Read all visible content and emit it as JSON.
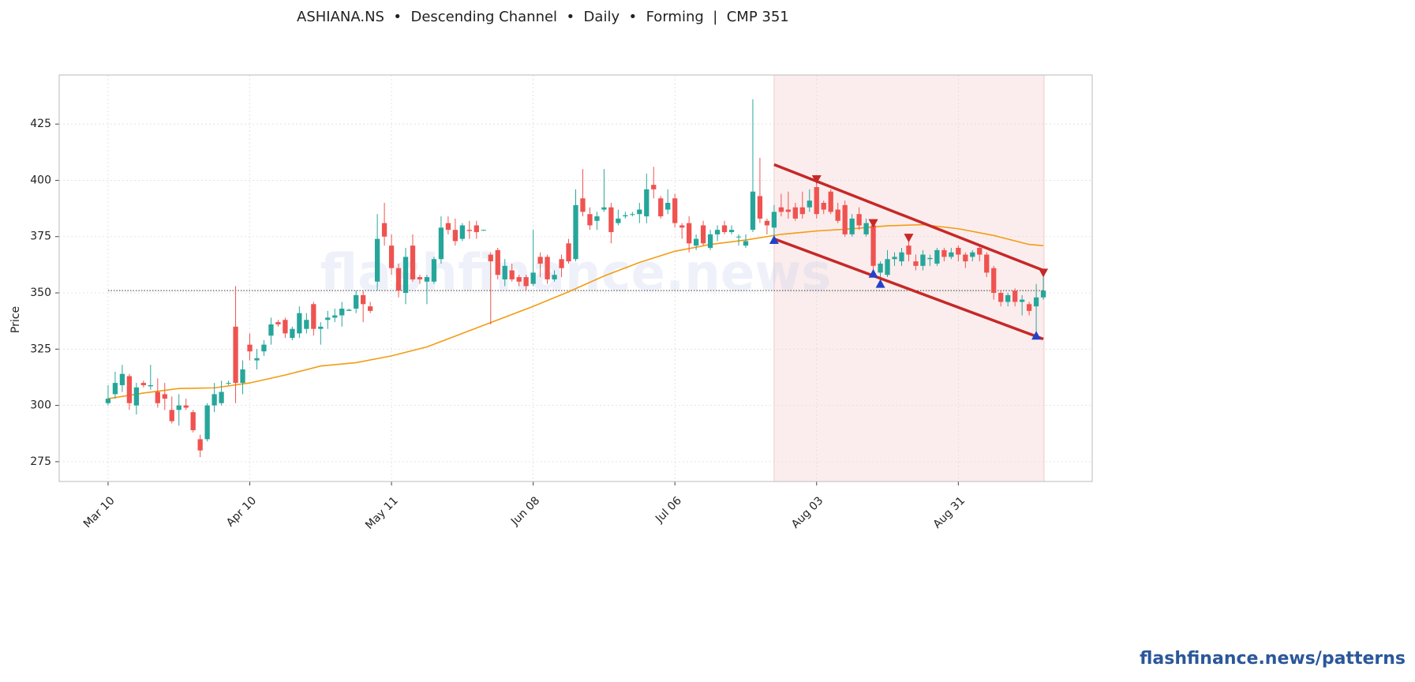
{
  "chart_data": {
    "type": "candlestick",
    "title": "ASHIANA.NS  •  Descending Channel  •  Daily  •  Forming  |  CMP 351",
    "ylabel": "Price",
    "watermark": "flashfinance.news",
    "footer": "flashfinance.news/patterns",
    "up_color": "#26a69a",
    "down_color": "#ef5350",
    "grid": true,
    "xlim": [
      -6.9,
      138.9
    ],
    "ylim": [
      266.2,
      446.8
    ],
    "yticks": [
      275,
      300,
      325,
      350,
      375,
      400,
      425
    ],
    "xticks": [
      {
        "value": 0,
        "label": "Mar 10"
      },
      {
        "value": 20,
        "label": "Apr 10"
      },
      {
        "value": 40,
        "label": "May 11"
      },
      {
        "value": 60,
        "label": "Jun 08"
      },
      {
        "value": 80,
        "label": "Jul 06"
      },
      {
        "value": 100,
        "label": "Aug 03"
      },
      {
        "value": 120,
        "label": "Aug 31"
      }
    ],
    "open": [
      301,
      305,
      309,
      313,
      300,
      310,
      308.5,
      306,
      305,
      298,
      298,
      300,
      297,
      285,
      285,
      300,
      301,
      310,
      335,
      310,
      327,
      320,
      324,
      331,
      337,
      338,
      330,
      332,
      334,
      345,
      334,
      338,
      339,
      340,
      342,
      343,
      349,
      344,
      355,
      381,
      371,
      361,
      350,
      371,
      357,
      355,
      355,
      365,
      381,
      378,
      374,
      378,
      380,
      378,
      367,
      369,
      356,
      360,
      357,
      357,
      354,
      366,
      366,
      356,
      365,
      372,
      365,
      392,
      385,
      382,
      387,
      388,
      381,
      384,
      385,
      385,
      384,
      398,
      392,
      387,
      392,
      380,
      381,
      371,
      380,
      370,
      376,
      380,
      377,
      375,
      371,
      378,
      393,
      382,
      379,
      388,
      387,
      388,
      388,
      388,
      397,
      390,
      395,
      387,
      389,
      376,
      385,
      376,
      380,
      359,
      358,
      365,
      364,
      371,
      364,
      362,
      365,
      363,
      369,
      366,
      370,
      367,
      366,
      370,
      367,
      361,
      350,
      346,
      351,
      346,
      345,
      344,
      348
    ],
    "high": [
      309,
      315,
      318,
      314,
      310,
      311,
      318,
      312,
      310,
      304,
      305,
      303,
      298,
      287,
      301,
      310,
      311,
      311,
      353,
      320,
      332,
      325,
      329,
      339,
      338,
      339,
      335,
      344,
      341,
      346,
      337,
      342,
      343,
      346,
      343,
      351,
      351,
      346,
      385,
      390,
      376,
      363,
      370,
      376,
      358,
      358,
      366,
      384,
      384,
      383,
      381,
      382,
      382,
      378,
      368,
      370,
      365,
      363,
      358,
      358,
      378,
      368,
      367,
      360,
      367,
      374,
      396,
      405,
      388,
      386,
      405,
      390,
      387,
      386,
      386,
      390,
      403,
      406,
      393,
      396,
      394,
      381,
      384,
      376,
      382,
      378,
      380,
      382,
      380,
      376,
      376,
      436,
      410,
      383,
      389,
      394,
      395,
      390,
      395,
      396,
      400,
      391,
      396,
      390,
      391,
      385,
      388,
      383,
      382,
      364,
      369,
      368,
      370,
      373,
      367,
      369,
      367,
      370,
      370,
      370,
      371,
      368,
      369,
      371,
      368,
      362,
      351,
      350,
      352,
      349,
      346,
      354,
      357
    ],
    "low": [
      300,
      303,
      306,
      298,
      296,
      308,
      307,
      299,
      298,
      292,
      291,
      298,
      288,
      277,
      284,
      297,
      300,
      309,
      301,
      305,
      320,
      316,
      322,
      327,
      335,
      330,
      329,
      330,
      332,
      331,
      327,
      334,
      337,
      335,
      342,
      341,
      337,
      341,
      351,
      371,
      358,
      348,
      345,
      355,
      354,
      345,
      354,
      363,
      376,
      371,
      373,
      374,
      374,
      377.5,
      336,
      356,
      353,
      355,
      353,
      351,
      353,
      357,
      354,
      355,
      357,
      363,
      364,
      384,
      378,
      378,
      386,
      372,
      380,
      383,
      384,
      381,
      381,
      392,
      383,
      385,
      379,
      374,
      368,
      369,
      371,
      369,
      373,
      376,
      376,
      371,
      370,
      377,
      381,
      376,
      373,
      384,
      383,
      382,
      383,
      386,
      383,
      385,
      385,
      381,
      375,
      375,
      378,
      375,
      359,
      354,
      357,
      362,
      362,
      364,
      360,
      360,
      362,
      362,
      364,
      365,
      364,
      361,
      364,
      364,
      357,
      347,
      344,
      344,
      344,
      340,
      340,
      331,
      347
    ],
    "close": [
      303,
      310,
      314,
      301,
      308,
      309,
      309,
      301,
      303,
      293,
      300,
      299,
      289,
      280,
      300,
      305,
      306,
      310,
      310,
      316,
      324,
      321,
      327,
      336,
      336,
      332,
      334,
      341,
      338,
      334,
      335,
      339,
      340,
      343,
      342.5,
      349,
      345,
      342,
      374,
      375,
      361,
      351,
      366,
      356,
      356,
      357,
      365,
      379,
      378,
      373,
      380,
      377.5,
      377,
      378,
      364,
      358,
      362,
      356,
      355,
      353,
      359,
      363,
      356,
      358,
      361,
      364,
      389,
      386,
      380,
      384,
      388,
      377,
      383,
      384.5,
      385,
      387,
      396,
      396,
      384,
      390,
      381,
      379,
      372,
      374,
      372,
      376,
      378,
      377,
      378,
      375,
      373,
      395,
      383,
      380,
      386,
      386,
      386,
      383,
      385,
      391,
      385,
      387,
      386,
      382,
      376,
      383,
      380,
      381,
      362,
      363,
      365,
      366,
      368,
      367,
      362,
      367,
      365.5,
      369,
      366,
      368,
      367,
      364,
      368,
      367,
      359,
      350,
      346,
      349,
      346,
      347,
      342,
      348,
      351
    ],
    "moving_average": {
      "color": "#f39c12",
      "x": [
        0,
        5,
        10,
        15,
        20,
        25,
        30,
        35,
        40,
        45,
        50,
        55,
        60,
        65,
        70,
        75,
        80,
        85,
        90,
        95,
        100,
        105,
        110,
        115,
        120,
        125,
        130,
        132
      ],
      "values": [
        303,
        305.5,
        307.5,
        307.8,
        310,
        313.5,
        317.5,
        319,
        322,
        326,
        332,
        338,
        344,
        350.5,
        357.5,
        363.5,
        368.5,
        371.5,
        373.5,
        376,
        377.5,
        378.5,
        379.8,
        380.3,
        378.5,
        375.5,
        371.5,
        371
      ]
    },
    "reference_line": 351,
    "pattern_window": [
      94,
      132.1
    ],
    "channel_color": "#c62828",
    "channel_upper": {
      "x": [
        94,
        132
      ],
      "values": [
        407,
        360
      ]
    },
    "channel_lower": {
      "x": [
        94,
        132
      ],
      "values": [
        374,
        329.5
      ]
    },
    "pivots_high": {
      "color": "#c62828",
      "x": [
        100,
        108,
        113,
        132
      ],
      "values": [
        400.5,
        381,
        374.5,
        359
      ]
    },
    "pivots_low": {
      "color": "#2541c9",
      "x": [
        94,
        108,
        109,
        131
      ],
      "values": [
        373.5,
        358.5,
        354,
        331
      ]
    }
  }
}
